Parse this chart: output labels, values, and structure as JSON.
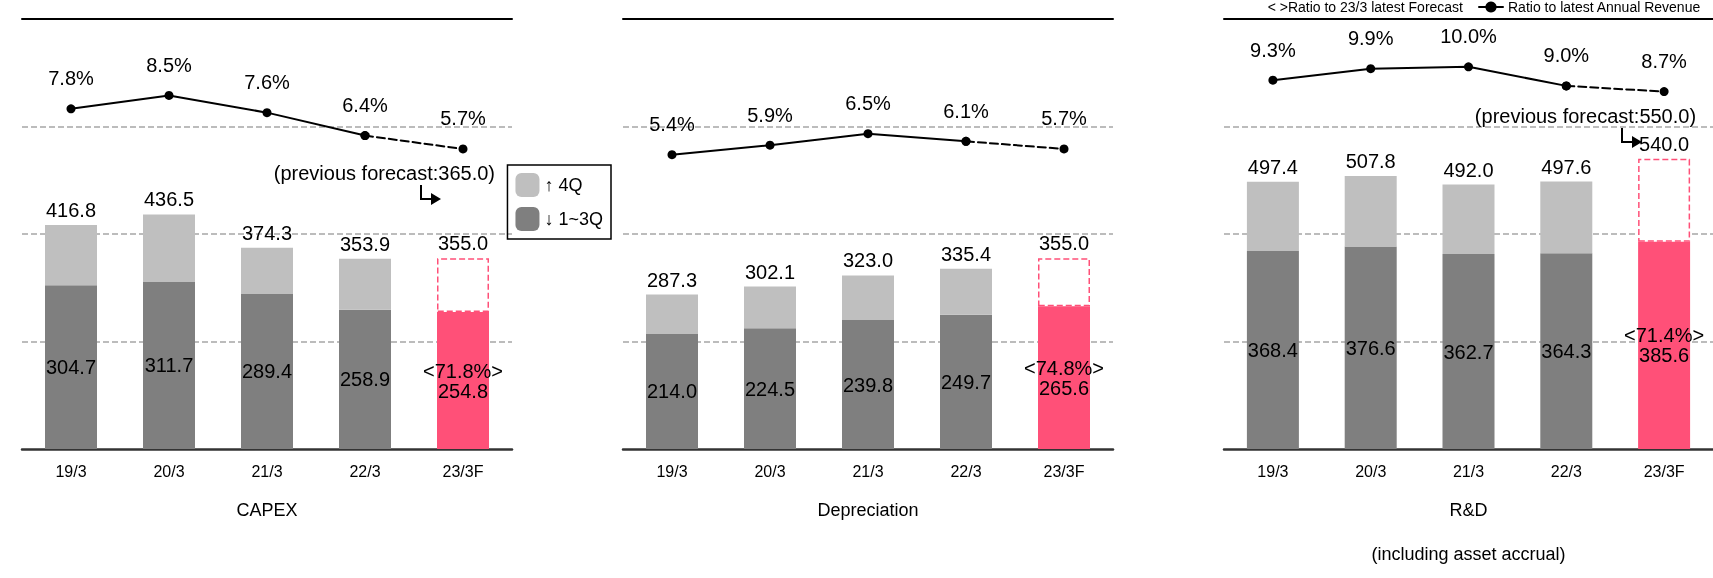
{
  "chart_data": [
    {
      "type": "bar",
      "stacked": true,
      "xlabel": "CAPEX",
      "categories": [
        "19/3",
        "20/3",
        "21/3",
        "22/3",
        "23/3F"
      ],
      "ylim": [
        0,
        800
      ],
      "yticks": [
        {
          "value": 200,
          "label": null
        },
        {
          "value": 400,
          "label": null
        },
        {
          "value": 600,
          "label": null
        }
      ],
      "grid": "y",
      "tick_labels": "x",
      "y2lim": [
        -10,
        12.5
      ],
      "legend": "right",
      "series": [
        {
          "name": "↓ 1~3Q",
          "color": "#7f7f7f",
          "colors": [
            "#7f7f7f",
            "#7f7f7f",
            "#7f7f7f",
            "#7f7f7f",
            "#ff5078"
          ],
          "values": [
            304.7,
            311.7,
            289.4,
            258.9,
            254.8
          ],
          "value_labels": [
            "304.7",
            "311.7",
            "289.4",
            "258.9",
            "<71.8%>\n254.8"
          ]
        },
        {
          "name": "↑ 4Q",
          "color": "#bfbfbf",
          "colors": [
            "#bfbfbf",
            "#bfbfbf",
            "#bfbfbf",
            "#bfbfbf",
            "#ffffff"
          ],
          "values": [
            112.1,
            124.8,
            84.9,
            95.0,
            100.2
          ]
        },
        {
          "type": "line",
          "axis": "y2",
          "color": "#000000",
          "marker": "circle",
          "values": [
            7.8,
            8.5,
            7.6,
            6.4,
            null
          ],
          "value_labels": [
            "7.8%",
            "8.5%",
            "7.6%",
            "6.4%",
            null
          ]
        },
        {
          "type": "line",
          "axis": "y2",
          "color": "#000000",
          "marker": "circle",
          "line_style": "dashed",
          "values": [
            null,
            null,
            null,
            6.4,
            5.7
          ],
          "value_labels": [
            null,
            null,
            null,
            null,
            "5.7%"
          ]
        }
      ],
      "totals": [
        "416.8",
        "436.5",
        "374.3",
        "353.9",
        "355.0"
      ],
      "annotations": [
        "(previous forecast:365.0)"
      ]
    },
    {
      "type": "bar",
      "stacked": true,
      "xlabel": "Depreciation",
      "categories": [
        "19/3",
        "20/3",
        "21/3",
        "22/3",
        "23/3F"
      ],
      "ylim": [
        0,
        800
      ],
      "yticks": [
        {
          "value": 200,
          "label": null
        },
        {
          "value": 400,
          "label": null
        },
        {
          "value": 600,
          "label": null
        }
      ],
      "grid": "y",
      "tick_labels": "x",
      "y2lim": [
        -10,
        12.5
      ],
      "series": [
        {
          "color": "#7f7f7f",
          "colors": [
            "#7f7f7f",
            "#7f7f7f",
            "#7f7f7f",
            "#7f7f7f",
            "#ff5078"
          ],
          "values": [
            214.0,
            224.5,
            239.8,
            249.7,
            265.6
          ],
          "value_labels": [
            "214.0",
            "224.5",
            "239.8",
            "249.7",
            "<74.8%>\n265.6"
          ]
        },
        {
          "color": "#bfbfbf",
          "colors": [
            "#bfbfbf",
            "#bfbfbf",
            "#bfbfbf",
            "#bfbfbf",
            "#ffffff"
          ],
          "values": [
            73.3,
            77.6,
            83.2,
            85.7,
            89.4
          ]
        },
        {
          "type": "line",
          "axis": "y2",
          "color": "#000000",
          "marker": "circle",
          "values": [
            5.4,
            5.9,
            6.5,
            6.1,
            null
          ],
          "value_labels": [
            "5.4%",
            "5.9%",
            "6.5%",
            "6.1%",
            null
          ]
        },
        {
          "type": "line",
          "axis": "y2",
          "color": "#000000",
          "marker": "circle",
          "line_style": "dashed",
          "values": [
            null,
            null,
            null,
            6.1,
            5.7
          ],
          "value_labels": [
            null,
            null,
            null,
            null,
            "5.7%"
          ]
        }
      ],
      "totals": [
        "287.3",
        "302.1",
        "323.0",
        "335.4",
        "355.0"
      ]
    },
    {
      "type": "bar",
      "stacked": true,
      "xlabel": "R&D\n\n(including asset accrual)",
      "categories": [
        "19/3",
        "20/3",
        "21/3",
        "22/3",
        "23/3F"
      ],
      "ylim": [
        0,
        800
      ],
      "yticks": [
        {
          "value": 200,
          "label": null
        },
        {
          "value": 400,
          "label": null
        },
        {
          "value": 600,
          "label": null
        }
      ],
      "grid": "y",
      "tick_labels": "x",
      "y2lim": [
        -10,
        12.5
      ],
      "legend": "top right",
      "series": [
        {
          "color": "#7f7f7f",
          "colors": [
            "#7f7f7f",
            "#7f7f7f",
            "#7f7f7f",
            "#7f7f7f",
            "#ff5078"
          ],
          "values": [
            368.4,
            376.6,
            362.7,
            364.3,
            385.6
          ],
          "value_labels": [
            "368.4",
            "376.6",
            "362.7",
            "364.3",
            "<71.4%>\n385.6"
          ]
        },
        {
          "color": "#bfbfbf",
          "colors": [
            "#bfbfbf",
            "#bfbfbf",
            "#bfbfbf",
            "#bfbfbf",
            "#ffffff"
          ],
          "values": [
            129.0,
            131.2,
            129.3,
            133.3,
            154.4
          ]
        },
        {
          "name": "Ratio to latest Annual Revenue",
          "type": "line",
          "axis": "y2",
          "color": "#000000",
          "marker": "circle",
          "values": [
            9.3,
            9.9,
            10.0,
            9.0,
            null
          ],
          "value_labels": [
            "9.3%",
            "9.9%",
            "10.0%",
            "9.0%",
            null
          ]
        },
        {
          "type": "line",
          "axis": "y2",
          "color": "#000000",
          "marker": "circle",
          "line_style": "dashed",
          "values": [
            null,
            null,
            null,
            9.0,
            8.7
          ],
          "value_labels": [
            null,
            null,
            null,
            null,
            "8.7%"
          ]
        }
      ],
      "totals": [
        "497.4",
        "507.8",
        "492.0",
        "497.6",
        "540.0"
      ],
      "annotations": [
        "< >Ratio to 23/3 latest Forecast",
        "(previous forecast:550.0)"
      ]
    }
  ]
}
